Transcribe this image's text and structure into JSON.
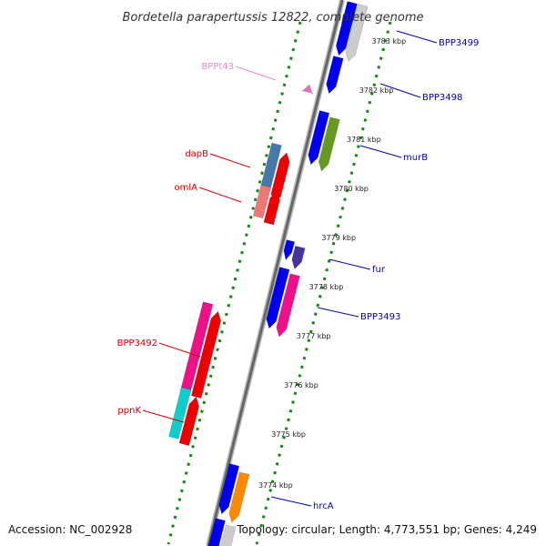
{
  "title": "Bordetella parapertussis 12822, complete genome",
  "accession": "Accession: NC_002928",
  "summary": "Topology: circular; Length: 4,773,551 bp; Genes: 4,249",
  "scale_labels": [
    {
      "label": "3783 kbp",
      "kbp": 3783
    },
    {
      "label": "3782 kbp",
      "kbp": 3782
    },
    {
      "label": "3781 kbp",
      "kbp": 3781
    },
    {
      "label": "3780 kbp",
      "kbp": 3780
    },
    {
      "label": "3779 kbp",
      "kbp": 3779
    },
    {
      "label": "3778 kbp",
      "kbp": 3778
    },
    {
      "label": "3777 kbp",
      "kbp": 3777
    },
    {
      "label": "3776 kbp",
      "kbp": 3776
    },
    {
      "label": "3775 kbp",
      "kbp": 3775
    },
    {
      "label": "3774 kbp",
      "kbp": 3774
    }
  ],
  "gene_labels": [
    {
      "text": "BPP3499",
      "strand": "forward",
      "color": "#0000aa"
    },
    {
      "text": "BPP3498",
      "strand": "forward",
      "color": "#0000aa"
    },
    {
      "text": "murB",
      "strand": "forward",
      "color": "#0000aa"
    },
    {
      "text": "fur",
      "strand": "forward",
      "color": "#0000aa"
    },
    {
      "text": "BPP3493",
      "strand": "forward",
      "color": "#0000aa"
    },
    {
      "text": "hrcA",
      "strand": "forward",
      "color": "#0000aa"
    },
    {
      "text": "BPPt43",
      "strand": "reverse",
      "color": "#ee88cc"
    },
    {
      "text": "dapB",
      "strand": "reverse",
      "color": "#cc0000"
    },
    {
      "text": "omlA",
      "strand": "reverse",
      "color": "#cc0000"
    },
    {
      "text": "BPP3492",
      "strand": "reverse",
      "color": "#cc0000"
    },
    {
      "text": "ppnK",
      "strand": "reverse",
      "color": "#cc0000"
    }
  ],
  "colors": {
    "cds_forward": "#0000ee",
    "cds_reverse": "#ee0000",
    "gene_pink": "#ee1188",
    "gene_steelblue": "#4477aa",
    "gene_olive": "#669922",
    "gene_salmon": "#ee7777",
    "gene_cyan": "#11cccc",
    "gene_indigo": "#443399",
    "gene_orange": "#ff8800",
    "gene_grey": "#cccccc",
    "trna": "#ee66bb",
    "backbone": "#777777",
    "ticks": "#118811",
    "forward_line": "#0000cc",
    "reverse_line": "#cc0000"
  }
}
